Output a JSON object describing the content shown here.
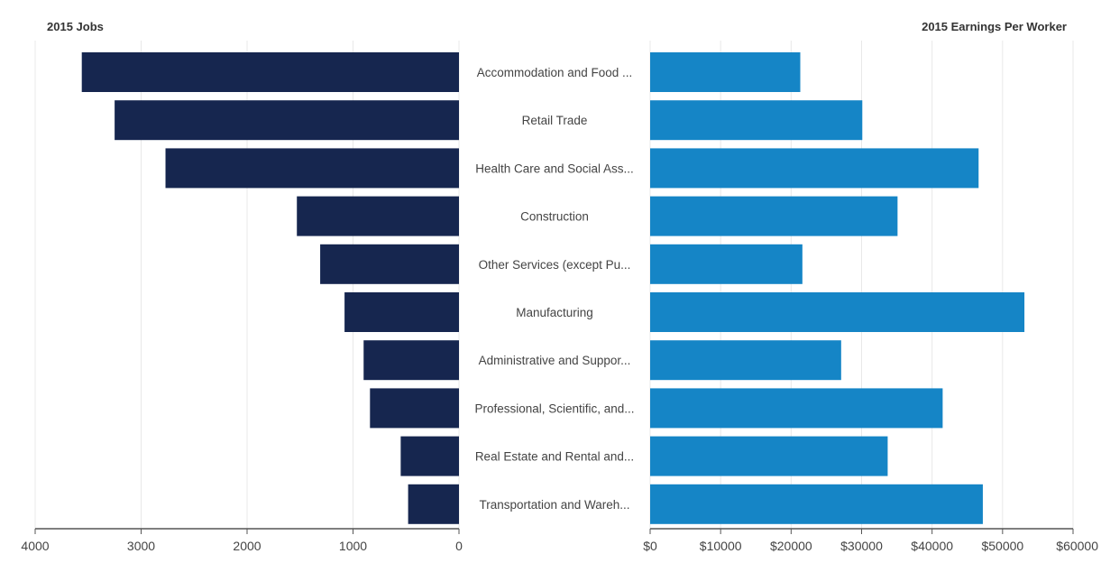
{
  "chart_data": {
    "type": "bar",
    "categories": [
      "Accommodation and Food ...",
      "Retail Trade",
      "Health Care and Social Ass...",
      "Construction",
      "Other Services (except Pu...",
      "Manufacturing",
      "Administrative and Suppor...",
      "Professional, Scientific, and...",
      "Real Estate and Rental and...",
      "Transportation and Wareh..."
    ],
    "left": {
      "title": "2015 Jobs",
      "values": [
        3560,
        3250,
        2770,
        1530,
        1310,
        1080,
        900,
        840,
        550,
        480
      ],
      "xlim": [
        4000,
        0
      ],
      "ticks": [
        4000,
        3000,
        2000,
        1000,
        0
      ],
      "tick_labels": [
        "4000",
        "3000",
        "2000",
        "1000",
        "0"
      ],
      "color": "#16264f"
    },
    "right": {
      "title": "2015 Earnings Per Worker",
      "values": [
        21300,
        30100,
        46600,
        35100,
        21600,
        53100,
        27100,
        41500,
        33700,
        47200
      ],
      "xlim": [
        0,
        60000
      ],
      "ticks": [
        0,
        10000,
        20000,
        30000,
        40000,
        50000,
        60000
      ],
      "tick_labels": [
        "$0",
        "$10000",
        "$20000",
        "$30000",
        "$40000",
        "$50000",
        "$60000"
      ],
      "color": "#1585c6"
    },
    "grid": true,
    "grid_color": "#e8e8e8",
    "axis_color": "#555555"
  }
}
